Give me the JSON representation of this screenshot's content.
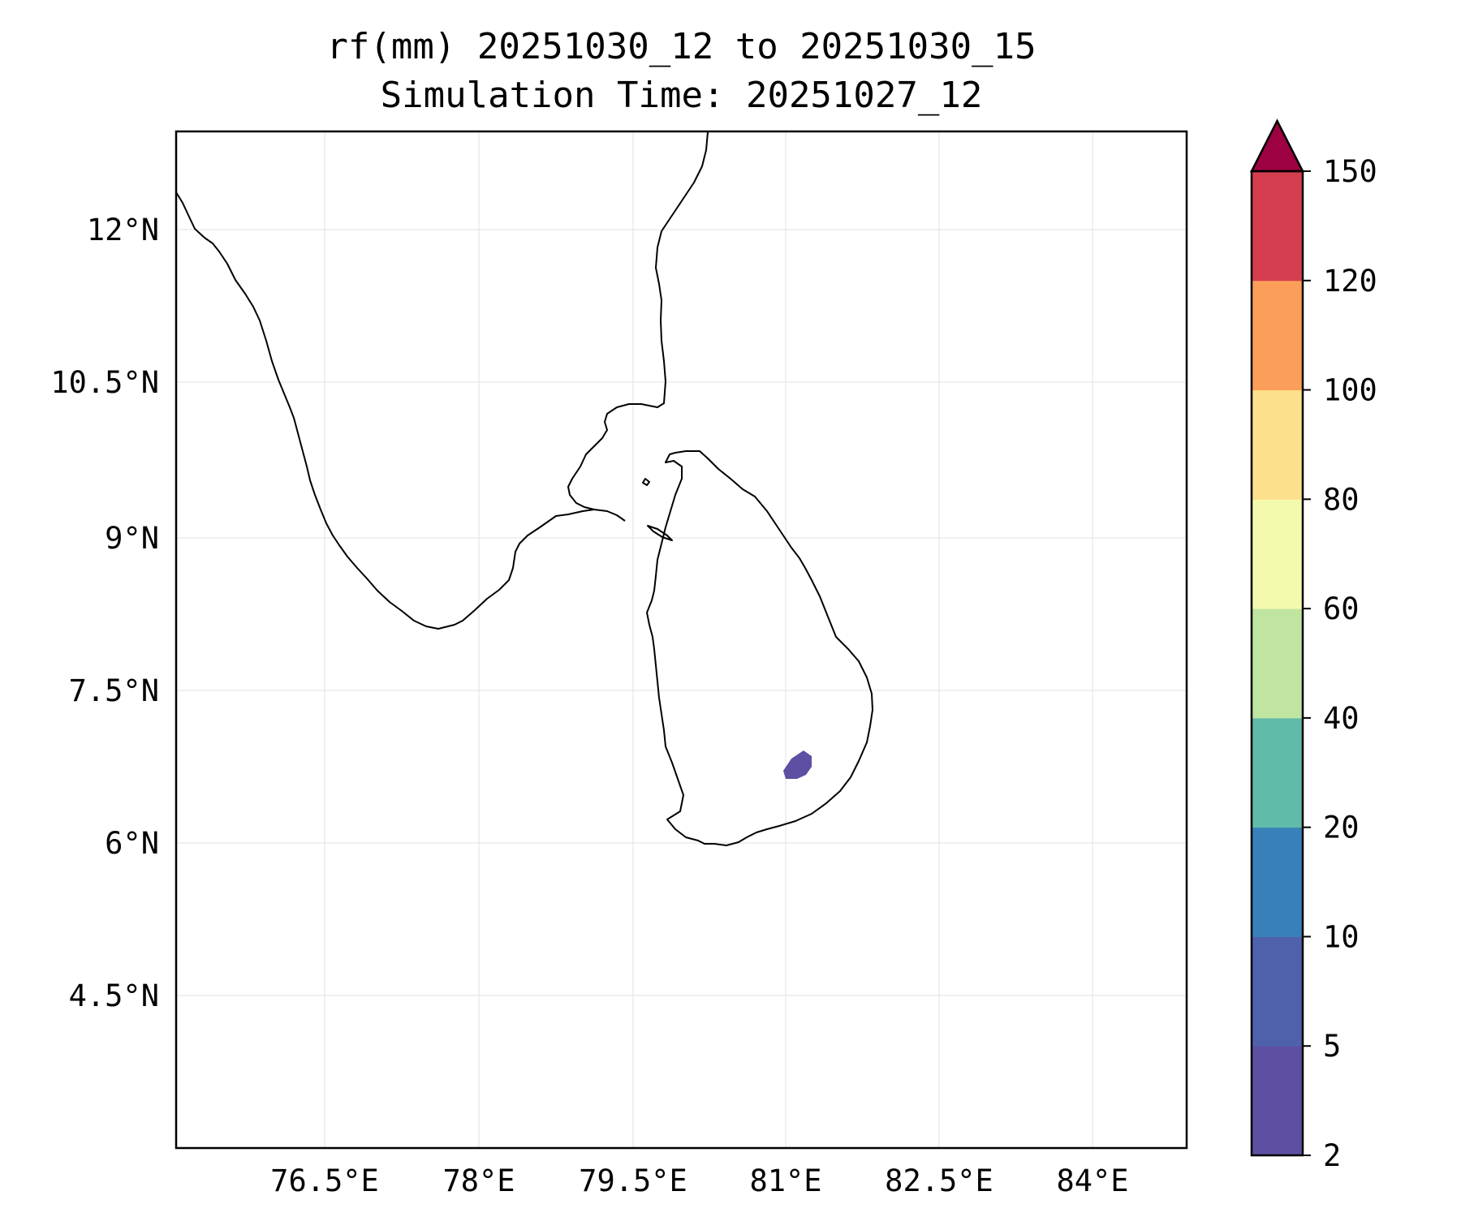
{
  "title": {
    "line1": "rf(mm) 20251030_12 to 20251030_15",
    "line2": "Simulation Time: 20251027_12"
  },
  "map": {
    "x_ticks": [
      "76.5°E",
      "78°E",
      "79.5°E",
      "81°E",
      "82.5°E",
      "84°E"
    ],
    "y_ticks": [
      "12°N",
      "10.5°N",
      "9°N",
      "7.5°N",
      "6°N",
      "4.5°N"
    ],
    "gridlines": true
  },
  "colorbar": {
    "extend": "max",
    "levels": [
      "2",
      "5",
      "10",
      "20",
      "40",
      "60",
      "80",
      "100",
      "120",
      "150"
    ],
    "colors": [
      "#5e4fa2",
      "#4f61aa",
      "#3880b9",
      "#60bba8",
      "#bfe5a0",
      "#f4faad",
      "#fde08b",
      "#fb9e5a",
      "#d53e4f"
    ],
    "over_color": "#9e0142"
  },
  "rain_area": {
    "color": "#5e4fa2",
    "level": "2-5 mm"
  }
}
